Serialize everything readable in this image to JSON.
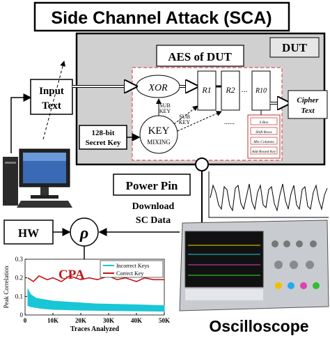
{
  "title": "Side Channel Attack (SCA)",
  "dut": {
    "label": "DUT",
    "aes_title": "AES of DUT",
    "xor": "XOR",
    "key": "KEY",
    "mixing": "MIXING",
    "sub_key_1": [
      "SUB",
      "KEY"
    ],
    "sub_key_2": [
      "SUB",
      "KEY"
    ],
    "rounds": [
      "R1",
      "R2",
      "...",
      "R10"
    ],
    "dotted": "......",
    "round_ops": [
      "S Box",
      "Shift Rows",
      "Mix Columns",
      "Add Round Key"
    ],
    "cipher_text": [
      "Cipher",
      "Text"
    ]
  },
  "input_text": [
    "Input",
    "Text"
  ],
  "secret_key": [
    "128-bit",
    "Secret Key"
  ],
  "power_pin": "Power Pin",
  "download": [
    "Download",
    "SC Data"
  ],
  "hw": "HW",
  "rho": "ρ",
  "cpa": "CPA",
  "oscilloscope": "Oscilloscope",
  "chart_data": {
    "type": "line",
    "xlabel": "Traces Analyzed",
    "ylabel": "Peak Correlation",
    "xlim": [
      0,
      50000
    ],
    "ylim": [
      0,
      0.3
    ],
    "x_ticks": [
      "0",
      "10K",
      "20K",
      "30K",
      "40K",
      "50K"
    ],
    "y_ticks": [
      "0",
      "0.1",
      "0.2",
      "0.3"
    ],
    "legend": [
      "Incorrect Keys",
      "Correct Key"
    ],
    "legend_position": "top-right",
    "series": [
      {
        "name": "Incorrect Keys",
        "color": "#19c6d6",
        "x": [
          1000,
          2000,
          4000,
          6000,
          10000,
          15000,
          20000,
          25000,
          30000,
          40000,
          50000
        ],
        "upper": [
          0.14,
          0.11,
          0.09,
          0.085,
          0.075,
          0.07,
          0.065,
          0.06,
          0.058,
          0.055,
          0.05
        ],
        "lower": [
          0.05,
          0.045,
          0.04,
          0.035,
          0.03,
          0.028,
          0.026,
          0.025,
          0.024,
          0.022,
          0.02
        ]
      },
      {
        "name": "Correct Key",
        "color": "#c01818",
        "x": [
          1000,
          3000,
          5000,
          8000,
          10000,
          13000,
          16000,
          20000,
          23000,
          26000,
          30000,
          33000,
          36000,
          40000,
          43000,
          46000,
          50000
        ],
        "values": [
          0.2,
          0.18,
          0.21,
          0.19,
          0.2,
          0.18,
          0.21,
          0.19,
          0.2,
          0.19,
          0.21,
          0.19,
          0.2,
          0.18,
          0.2,
          0.19,
          0.19
        ]
      }
    ]
  },
  "colors": {
    "cpa": "#c01818",
    "dut_bg": "#d0d0d0",
    "aes_border": "#e05050"
  }
}
